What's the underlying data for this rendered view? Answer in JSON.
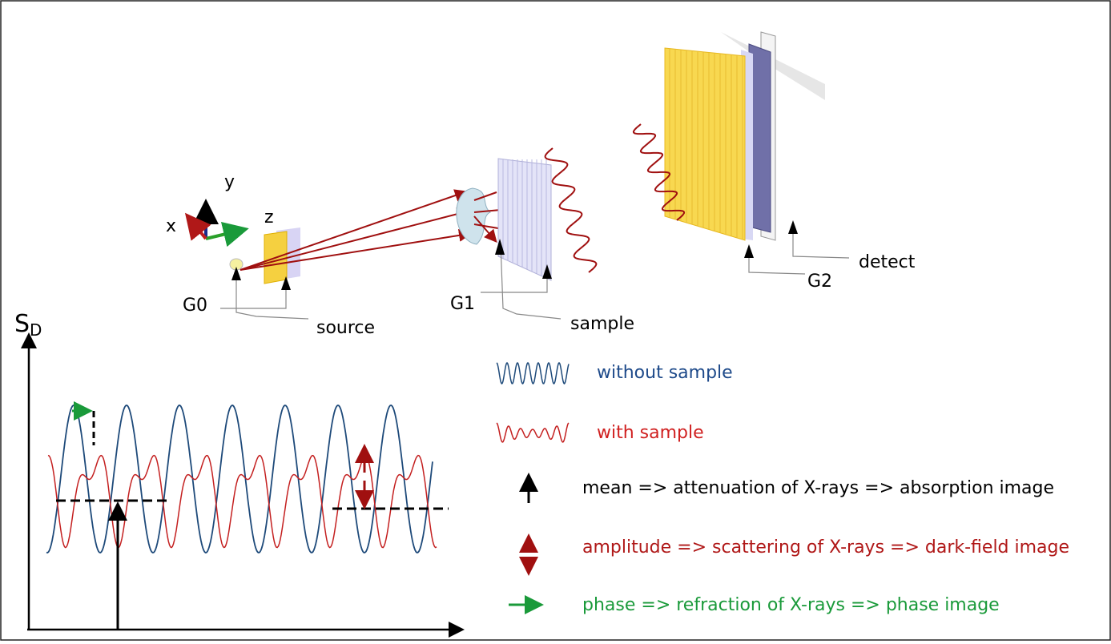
{
  "setup": {
    "axis_y": "y",
    "axis_x": "x",
    "axis_z": "z",
    "g0": "G0",
    "source": "source",
    "g1": "G1",
    "sample": "sample",
    "g2": "G2",
    "detect": "detect"
  },
  "plot": {
    "ylabel": "S",
    "ylabel_sub": "D"
  },
  "legend": [
    {
      "text": "without sample"
    },
    {
      "text": "with sample"
    },
    {
      "text": "mean => attenuation of X-rays => absorption image"
    },
    {
      "text": "amplitude => scattering of X-rays => dark-field image"
    },
    {
      "text": "phase => refraction of X-rays => phase image"
    }
  ]
}
